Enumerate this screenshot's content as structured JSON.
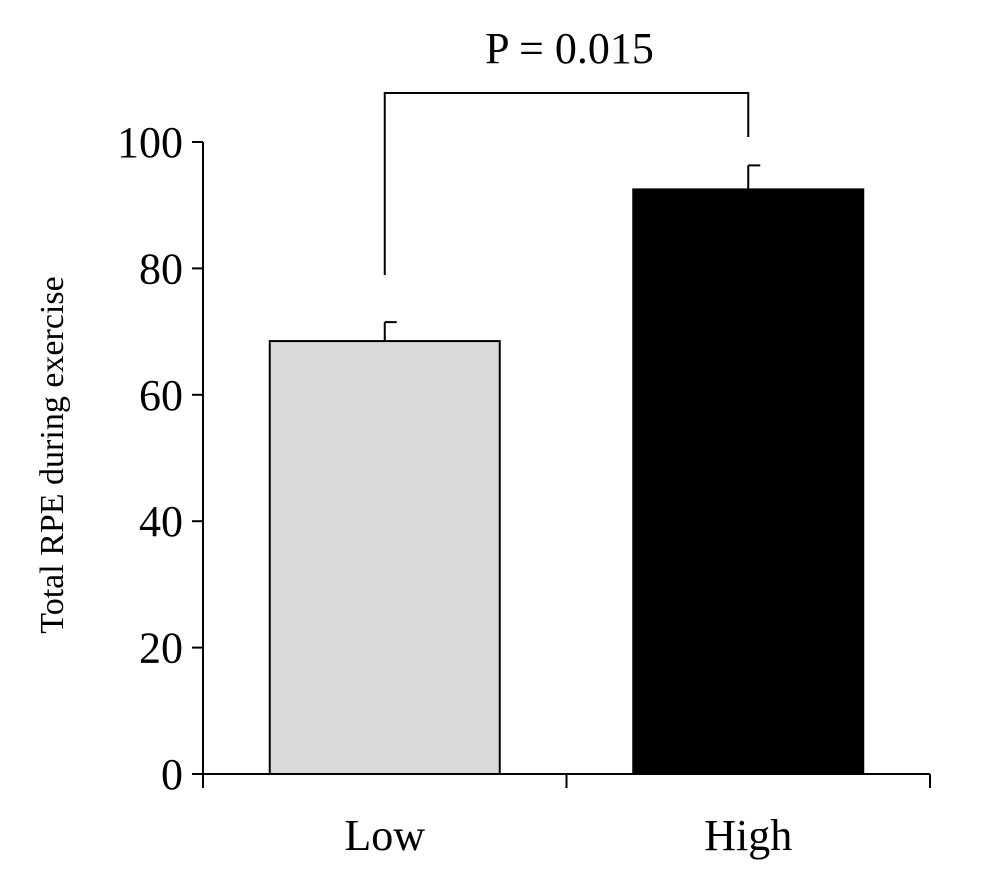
{
  "chart_data": {
    "type": "bar",
    "categories": [
      "Low",
      "High"
    ],
    "values": [
      68.5,
      92.5
    ],
    "errors": [
      3,
      3.8
    ],
    "colors": [
      "#d9d9d9",
      "#000000"
    ],
    "ylabel": "Total RPE during exercise",
    "xlabel": "",
    "ylim": [
      0,
      100
    ],
    "yticks": [
      0,
      20,
      40,
      60,
      80,
      100
    ],
    "ytick_labels": [
      "0",
      "20",
      "40",
      "60",
      "80",
      "100"
    ],
    "annotation": "P = 0.015",
    "grid": false,
    "legend": "none"
  }
}
